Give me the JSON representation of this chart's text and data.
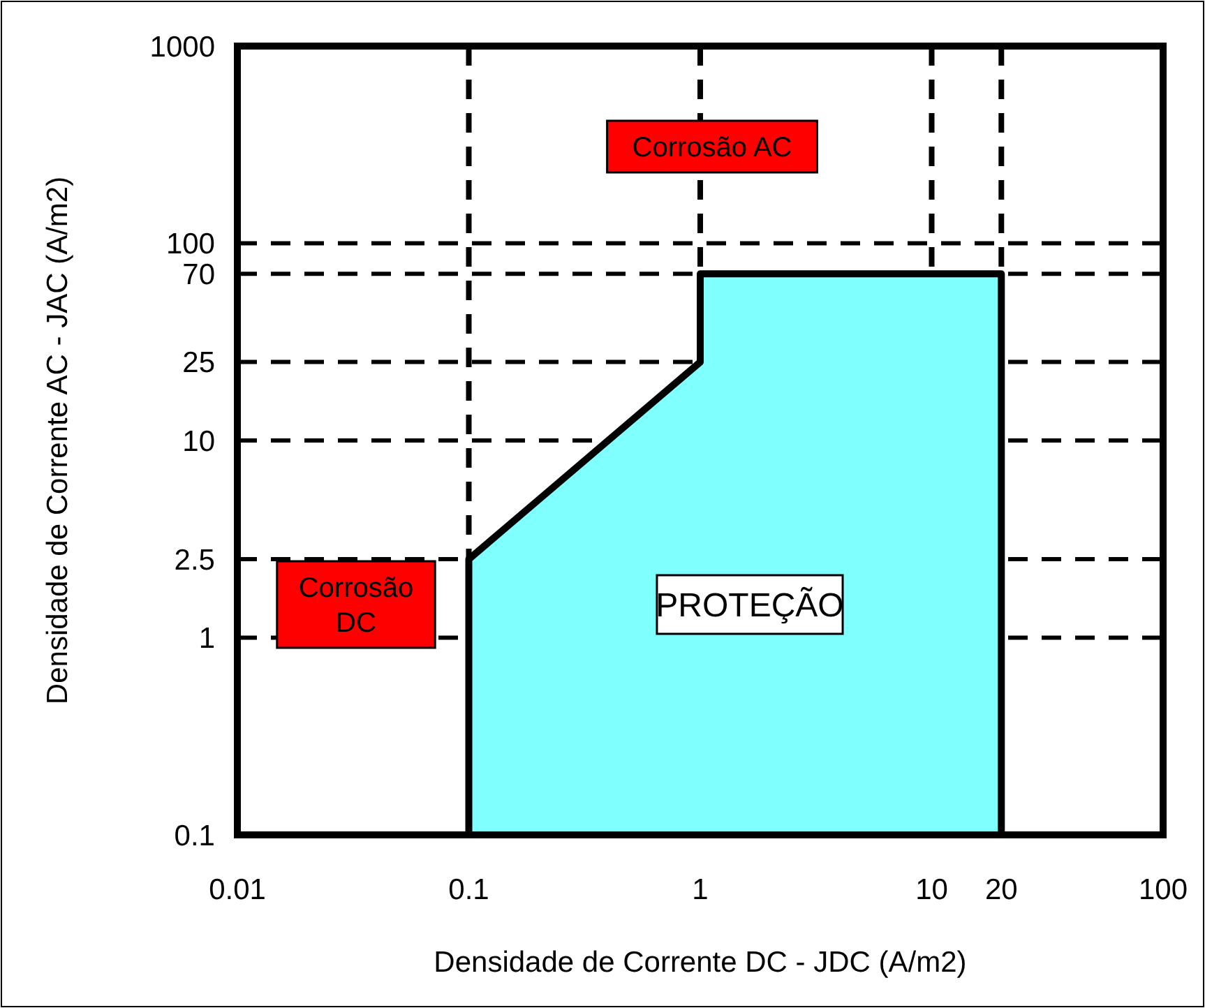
{
  "chart_data": {
    "type": "area",
    "xlabel": "Densidade de Corrente DC - JDC (A/m2)",
    "ylabel": "Densidade de Corrente AC - JAC (A/m2)",
    "x": [
      0.1,
      1,
      1,
      20
    ],
    "series": [
      {
        "color": "#80ffff",
        "values": [
          2.5,
          25,
          70,
          70
        ]
      }
    ],
    "log": "xy",
    "xlim": [
      0.01,
      100
    ],
    "ylim": [
      0.1,
      1000
    ],
    "xticks": [
      0.01,
      0.1,
      1,
      10,
      20,
      100
    ],
    "yticks": [
      0.1,
      1,
      2.5,
      10,
      25,
      70,
      100,
      1000
    ],
    "grid": true,
    "line_style": "dashed",
    "annotations": [
      "Corrosão AC",
      "Corrosão DC",
      "PROTEÇÃO"
    ]
  }
}
